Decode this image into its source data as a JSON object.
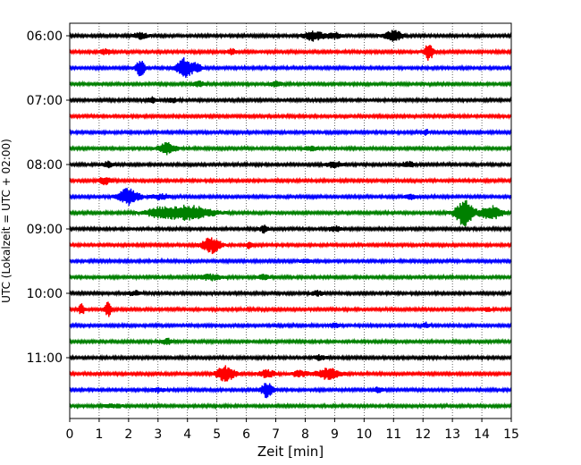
{
  "chart_data": {
    "type": "line",
    "title": "",
    "xlabel": "Zeit  [min]",
    "ylabel": "UTC (Lokalzeit = UTC + 02:00)",
    "xlim": [
      0,
      15
    ],
    "x_ticks": [
      0,
      1,
      2,
      3,
      4,
      5,
      6,
      7,
      8,
      9,
      10,
      11,
      12,
      13,
      14,
      15
    ],
    "y_tick_labels": [
      "06:00",
      "07:00",
      "08:00",
      "09:00",
      "10:00",
      "11:00"
    ],
    "trace_interval_min": 15,
    "traces_per_hour": 4,
    "trace_colors": [
      "#000000",
      "#ff0000",
      "#0000ff",
      "#008000"
    ],
    "grid": "vertical-dotted",
    "traces": [
      {
        "start": "06:00",
        "events": [
          [
            8.3,
            5.5,
            0.35
          ],
          [
            11.0,
            6.0,
            0.3
          ],
          [
            2.4,
            3.0,
            0.25
          ],
          [
            9.0,
            3.0,
            0.25
          ]
        ]
      },
      {
        "start": "06:15",
        "events": [
          [
            12.2,
            9.0,
            0.15
          ],
          [
            1.2,
            3.0,
            0.2
          ],
          [
            5.5,
            3.0,
            0.15
          ]
        ]
      },
      {
        "start": "06:30",
        "events": [
          [
            2.4,
            9.0,
            0.15
          ],
          [
            3.9,
            11.0,
            0.25
          ],
          [
            4.3,
            4.0,
            0.2
          ]
        ]
      },
      {
        "start": "06:45",
        "events": [
          [
            4.4,
            3.0,
            0.2
          ],
          [
            7.0,
            2.5,
            0.2
          ]
        ]
      },
      {
        "start": "07:00",
        "events": [
          [
            2.8,
            3.0,
            0.15
          ],
          [
            3.5,
            2.5,
            0.15
          ]
        ]
      },
      {
        "start": "07:15",
        "events": []
      },
      {
        "start": "07:30",
        "events": [
          [
            12.1,
            3.0,
            0.1
          ]
        ]
      },
      {
        "start": "07:45",
        "events": [
          [
            3.3,
            6.0,
            0.3
          ],
          [
            8.2,
            2.5,
            0.2
          ]
        ]
      },
      {
        "start": "08:00",
        "events": [
          [
            1.3,
            3.0,
            0.2
          ],
          [
            9.0,
            3.0,
            0.3
          ],
          [
            11.5,
            3.0,
            0.2
          ]
        ]
      },
      {
        "start": "08:15",
        "events": [
          [
            1.2,
            4.0,
            0.2
          ]
        ]
      },
      {
        "start": "08:30",
        "events": [
          [
            2.0,
            9.0,
            0.35
          ],
          [
            3.1,
            3.0,
            0.3
          ],
          [
            11.6,
            3.0,
            0.2
          ]
        ]
      },
      {
        "start": "08:45",
        "events": [
          [
            13.4,
            14.0,
            0.3
          ],
          [
            14.3,
            8.0,
            0.35
          ],
          [
            4.0,
            8.0,
            0.8
          ],
          [
            3.0,
            4.0,
            0.5
          ]
        ]
      },
      {
        "start": "09:00",
        "events": [
          [
            6.6,
            4.0,
            0.15
          ],
          [
            9.0,
            3.0,
            0.2
          ]
        ]
      },
      {
        "start": "09:15",
        "events": [
          [
            4.8,
            9.0,
            0.3
          ],
          [
            6.1,
            4.0,
            0.1
          ]
        ]
      },
      {
        "start": "09:30",
        "events": [
          [
            8.0,
            2.0,
            0.2
          ]
        ]
      },
      {
        "start": "09:45",
        "events": [
          [
            4.8,
            3.0,
            0.4
          ],
          [
            6.6,
            3.0,
            0.2
          ]
        ]
      },
      {
        "start": "10:00",
        "events": [
          [
            2.2,
            2.5,
            0.2
          ],
          [
            8.4,
            2.5,
            0.2
          ]
        ]
      },
      {
        "start": "10:15",
        "events": [
          [
            0.4,
            6.0,
            0.1
          ],
          [
            1.3,
            8.0,
            0.1
          ],
          [
            14.2,
            3.0,
            0.1
          ]
        ]
      },
      {
        "start": "10:30",
        "events": [
          [
            12.1,
            3.0,
            0.1
          ],
          [
            9.0,
            2.0,
            0.2
          ]
        ]
      },
      {
        "start": "10:45",
        "events": [
          [
            3.3,
            3.0,
            0.2
          ]
        ]
      },
      {
        "start": "11:00",
        "events": [
          [
            8.5,
            2.5,
            0.2
          ]
        ]
      },
      {
        "start": "11:15",
        "events": [
          [
            5.3,
            9.0,
            0.3
          ],
          [
            6.7,
            4.0,
            0.3
          ],
          [
            8.8,
            6.0,
            0.4
          ],
          [
            7.8,
            3.0,
            0.3
          ]
        ]
      },
      {
        "start": "11:30",
        "events": [
          [
            6.7,
            8.0,
            0.2
          ],
          [
            10.5,
            3.0,
            0.15
          ],
          [
            3.0,
            2.5,
            0.2
          ]
        ]
      },
      {
        "start": "11:45",
        "events": [
          [
            1.5,
            2.0,
            0.3
          ]
        ]
      }
    ]
  }
}
